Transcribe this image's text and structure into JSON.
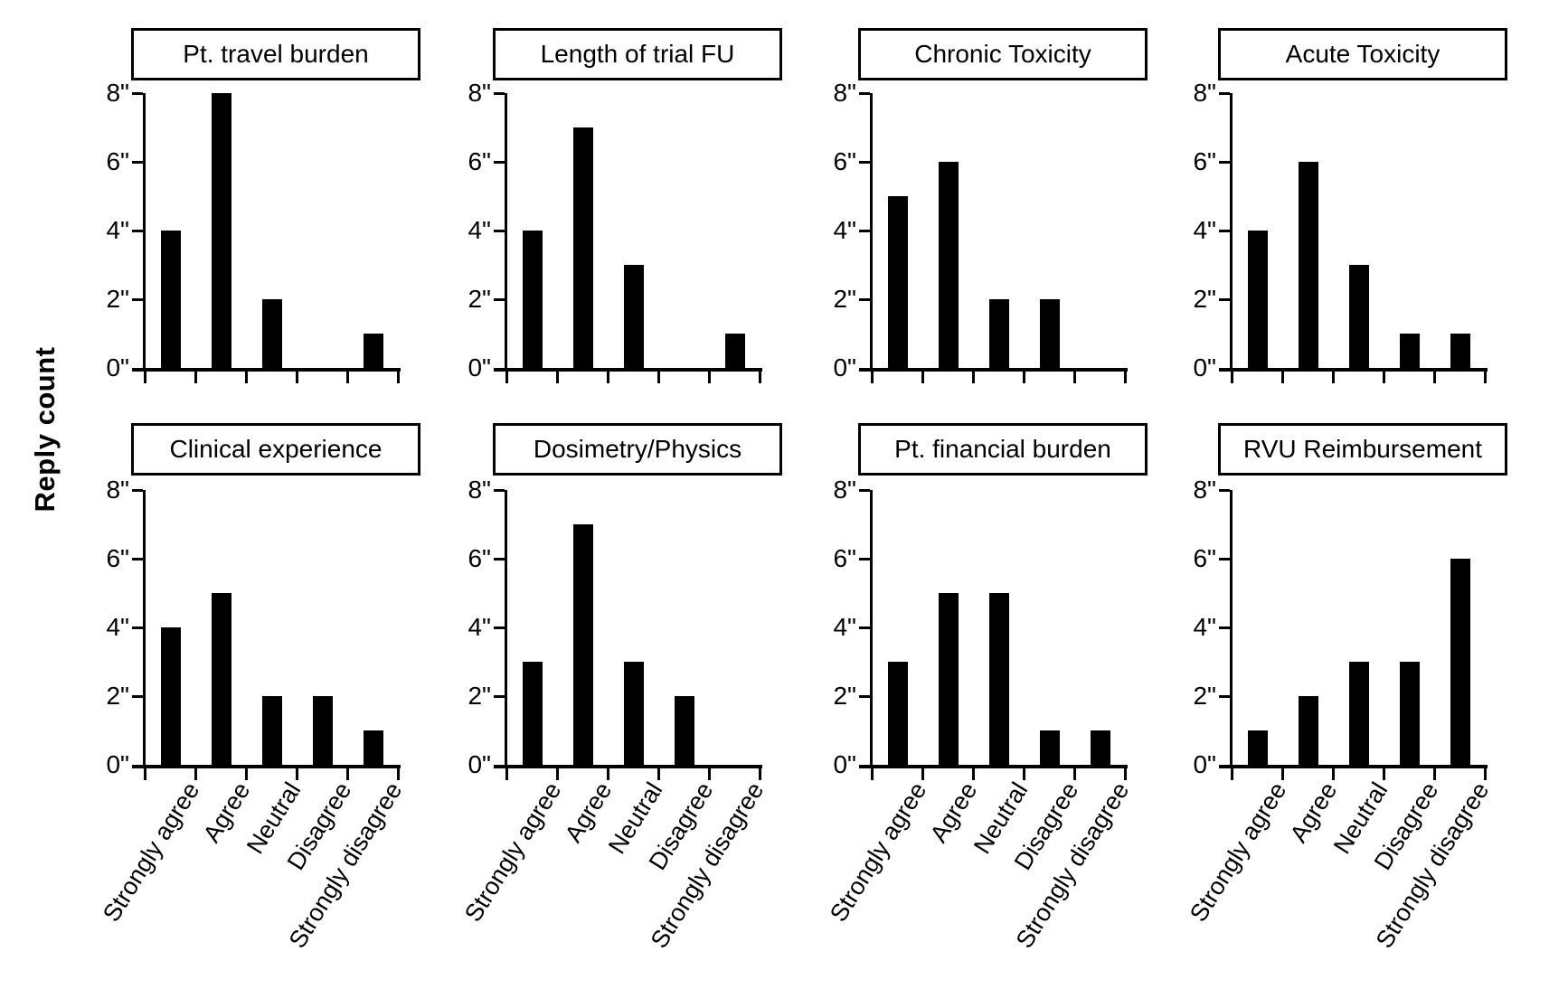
{
  "figure": {
    "ylabel": "Reply count",
    "ytick_labels": [
      "0\"",
      "2\"",
      "4\"",
      "6\"",
      "8\""
    ],
    "categories": [
      "Strongly agree",
      "Agree",
      "Neutral",
      "Disagree",
      "Strongly disagree"
    ]
  },
  "chart_data": [
    {
      "type": "bar",
      "title": "Pt. travel burden",
      "categories": [
        "Strongly agree",
        "Agree",
        "Neutral",
        "Disagree",
        "Strongly disagree"
      ],
      "values": [
        4,
        8,
        2,
        0,
        1
      ],
      "ylabel": "Reply count",
      "ylim": [
        0,
        8
      ],
      "yticks": [
        0,
        2,
        4,
        6,
        8
      ],
      "grid": "off",
      "bar_color": "#000000"
    },
    {
      "type": "bar",
      "title": "Length of trial FU",
      "categories": [
        "Strongly agree",
        "Agree",
        "Neutral",
        "Disagree",
        "Strongly disagree"
      ],
      "values": [
        4,
        7,
        3,
        0,
        1
      ],
      "ylabel": "Reply count",
      "ylim": [
        0,
        8
      ],
      "yticks": [
        0,
        2,
        4,
        6,
        8
      ],
      "grid": "off",
      "bar_color": "#000000"
    },
    {
      "type": "bar",
      "title": "Chronic Toxicity",
      "categories": [
        "Strongly agree",
        "Agree",
        "Neutral",
        "Disagree",
        "Strongly disagree"
      ],
      "values": [
        5,
        6,
        2,
        2,
        0
      ],
      "ylabel": "Reply count",
      "ylim": [
        0,
        8
      ],
      "yticks": [
        0,
        2,
        4,
        6,
        8
      ],
      "grid": "off",
      "bar_color": "#000000"
    },
    {
      "type": "bar",
      "title": "Acute Toxicity",
      "categories": [
        "Strongly agree",
        "Agree",
        "Neutral",
        "Disagree",
        "Strongly disagree"
      ],
      "values": [
        4,
        6,
        3,
        1,
        1
      ],
      "ylabel": "Reply count",
      "ylim": [
        0,
        8
      ],
      "yticks": [
        0,
        2,
        4,
        6,
        8
      ],
      "grid": "off",
      "bar_color": "#000000"
    },
    {
      "type": "bar",
      "title": "Clinical experience",
      "categories": [
        "Strongly agree",
        "Agree",
        "Neutral",
        "Disagree",
        "Strongly disagree"
      ],
      "values": [
        4,
        5,
        2,
        2,
        1
      ],
      "ylabel": "Reply count",
      "ylim": [
        0,
        8
      ],
      "yticks": [
        0,
        2,
        4,
        6,
        8
      ],
      "grid": "off",
      "bar_color": "#000000"
    },
    {
      "type": "bar",
      "title": "Dosimetry/Physics",
      "categories": [
        "Strongly agree",
        "Agree",
        "Neutral",
        "Disagree",
        "Strongly disagree"
      ],
      "values": [
        3,
        7,
        3,
        2,
        0
      ],
      "ylabel": "Reply count",
      "ylim": [
        0,
        8
      ],
      "yticks": [
        0,
        2,
        4,
        6,
        8
      ],
      "grid": "off",
      "bar_color": "#000000"
    },
    {
      "type": "bar",
      "title": "Pt. financial burden",
      "categories": [
        "Strongly agree",
        "Agree",
        "Neutral",
        "Disagree",
        "Strongly disagree"
      ],
      "values": [
        3,
        5,
        5,
        1,
        1
      ],
      "ylabel": "Reply count",
      "ylim": [
        0,
        8
      ],
      "yticks": [
        0,
        2,
        4,
        6,
        8
      ],
      "grid": "off",
      "bar_color": "#000000"
    },
    {
      "type": "bar",
      "title": "RVU Reimbursement",
      "categories": [
        "Strongly agree",
        "Agree",
        "Neutral",
        "Disagree",
        "Strongly disagree"
      ],
      "values": [
        1,
        2,
        3,
        3,
        6
      ],
      "ylabel": "Reply count",
      "ylim": [
        0,
        8
      ],
      "yticks": [
        0,
        2,
        4,
        6,
        8
      ],
      "grid": "off",
      "bar_color": "#000000"
    }
  ]
}
